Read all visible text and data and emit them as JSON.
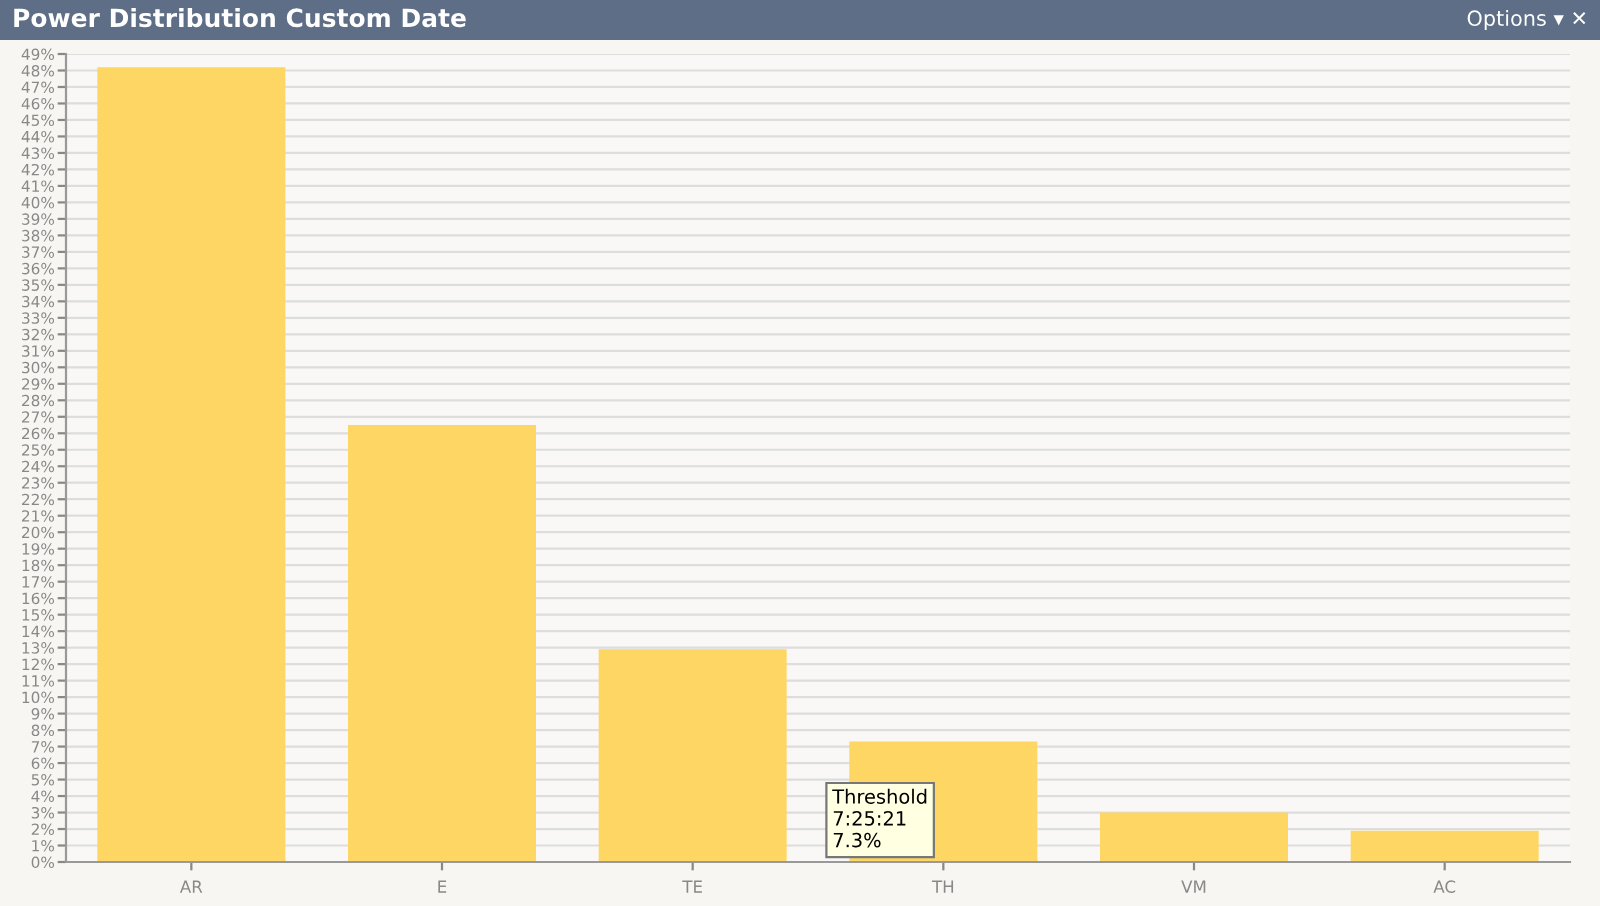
{
  "chart_data": {
    "type": "bar",
    "title": "Power Distribution Custom Date",
    "categories": [
      "AR",
      "E",
      "TE",
      "TH",
      "VM",
      "AC"
    ],
    "values": [
      48.2,
      26.5,
      12.9,
      7.3,
      3.0,
      1.9
    ],
    "color": "#fdd663",
    "ylim": [
      0,
      49
    ],
    "yticks": [
      {
        "value": 0,
        "label": "0%"
      },
      {
        "value": 1,
        "label": "1%"
      },
      {
        "value": 2,
        "label": "2%"
      },
      {
        "value": 3,
        "label": "3%"
      },
      {
        "value": 4,
        "label": "4%"
      },
      {
        "value": 5,
        "label": "5%"
      },
      {
        "value": 6,
        "label": "6%"
      },
      {
        "value": 7,
        "label": "7%"
      },
      {
        "value": 8,
        "label": "8%"
      },
      {
        "value": 9,
        "label": "9%"
      },
      {
        "value": 10,
        "label": "10%"
      },
      {
        "value": 11,
        "label": "11%"
      },
      {
        "value": 12,
        "label": "12%"
      },
      {
        "value": 13,
        "label": "13%"
      },
      {
        "value": 14,
        "label": "14%"
      },
      {
        "value": 15,
        "label": "15%"
      },
      {
        "value": 16,
        "label": "16%"
      },
      {
        "value": 17,
        "label": "17%"
      },
      {
        "value": 18,
        "label": "18%"
      },
      {
        "value": 19,
        "label": "19%"
      },
      {
        "value": 20,
        "label": "20%"
      },
      {
        "value": 21,
        "label": "21%"
      },
      {
        "value": 22,
        "label": "22%"
      },
      {
        "value": 23,
        "label": "23%"
      },
      {
        "value": 24,
        "label": "24%"
      },
      {
        "value": 25,
        "label": "25%"
      },
      {
        "value": 26,
        "label": "26%"
      },
      {
        "value": 27,
        "label": "27%"
      },
      {
        "value": 28,
        "label": "28%"
      },
      {
        "value": 29,
        "label": "29%"
      },
      {
        "value": 30,
        "label": "30%"
      },
      {
        "value": 31,
        "label": "31%"
      },
      {
        "value": 32,
        "label": "32%"
      },
      {
        "value": 33,
        "label": "33%"
      },
      {
        "value": 34,
        "label": "34%"
      },
      {
        "value": 35,
        "label": "35%"
      },
      {
        "value": 36,
        "label": "36%"
      },
      {
        "value": 37,
        "label": "37%"
      },
      {
        "value": 38,
        "label": "38%"
      },
      {
        "value": 39,
        "label": "39%"
      },
      {
        "value": 40,
        "label": "40%"
      },
      {
        "value": 41,
        "label": "41%"
      },
      {
        "value": 42,
        "label": "42%"
      },
      {
        "value": 43,
        "label": "43%"
      },
      {
        "value": 44,
        "label": "44%"
      },
      {
        "value": 45,
        "label": "45%"
      },
      {
        "value": 46,
        "label": "46%"
      },
      {
        "value": 47,
        "label": "47%"
      },
      {
        "value": 48,
        "label": "48%"
      },
      {
        "value": 49,
        "label": "49%"
      }
    ],
    "grid": "y",
    "annotations": [
      "Options ▾ ✕",
      {
        "text": "Threshold\n7:25:21\n7.3%",
        "x": "TH",
        "y": 7.3
      }
    ]
  }
}
